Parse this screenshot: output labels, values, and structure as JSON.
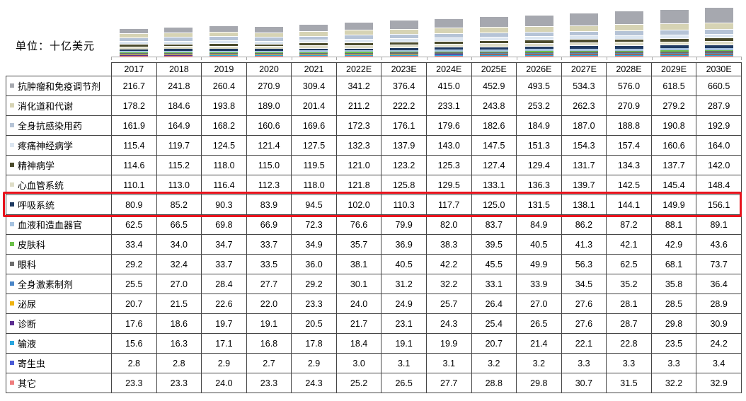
{
  "unit_label": "单位：十亿美元",
  "highlight": {
    "row_label": "呼吸系统",
    "color": "#e8131d"
  },
  "chart_data": {
    "type": "bar",
    "stacked": true,
    "title": "",
    "xlabel": "",
    "ylabel": "十亿美元",
    "legend_position": "table-row-labels",
    "axis_color": "#a6a6a6",
    "x": [
      "2017",
      "2018",
      "2019",
      "2020",
      "2021",
      "2022E",
      "2023E",
      "2024E",
      "2025E",
      "2026E",
      "2027E",
      "2028E",
      "2029E",
      "2030E"
    ],
    "series": [
      {
        "name": "抗肿瘤和免疫调节剂",
        "color": "#a6a8af",
        "values": [
          216.7,
          241.8,
          260.4,
          270.9,
          309.4,
          341.2,
          376.4,
          415.0,
          452.9,
          493.5,
          534.3,
          576.0,
          618.5,
          660.5
        ]
      },
      {
        "name": "消化道和代谢",
        "color": "#d6d3b4",
        "values": [
          178.2,
          184.6,
          193.8,
          189.0,
          201.4,
          211.2,
          222.2,
          233.1,
          243.8,
          253.2,
          262.3,
          270.9,
          279.2,
          287.9
        ]
      },
      {
        "name": "全身抗感染用药",
        "color": "#b5c3d6",
        "values": [
          161.9,
          164.9,
          168.2,
          160.6,
          169.6,
          172.3,
          176.1,
          179.6,
          182.6,
          184.9,
          187.0,
          188.8,
          190.8,
          192.9
        ]
      },
      {
        "name": "疼痛神经病学",
        "color": "#dce6f1",
        "values": [
          115.4,
          119.7,
          124.5,
          121.4,
          127.5,
          132.3,
          137.9,
          143.0,
          147.5,
          151.3,
          154.3,
          157.4,
          160.6,
          164.0
        ]
      },
      {
        "name": "精神病学",
        "color": "#4b4b2c",
        "values": [
          114.6,
          115.2,
          118.0,
          115.0,
          119.5,
          121.0,
          123.2,
          125.3,
          127.4,
          129.4,
          131.7,
          134.3,
          137.7,
          142.0
        ]
      },
      {
        "name": "心血管系统",
        "color": "#deddc7",
        "values": [
          110.1,
          113.0,
          116.4,
          112.3,
          118.0,
          121.8,
          125.8,
          129.5,
          133.1,
          136.3,
          139.7,
          142.5,
          145.4,
          148.4
        ]
      },
      {
        "name": "呼吸系统",
        "color": "#1f3a62",
        "values": [
          80.9,
          85.2,
          90.3,
          83.9,
          94.5,
          102.0,
          110.3,
          117.7,
          125.0,
          131.5,
          138.1,
          144.1,
          149.9,
          156.1
        ]
      },
      {
        "name": "血液和造血器官",
        "color": "#a5c2e0",
        "values": [
          62.5,
          66.5,
          69.8,
          66.9,
          72.3,
          76.6,
          79.9,
          82.0,
          83.7,
          84.9,
          86.2,
          87.2,
          88.1,
          89.1
        ]
      },
      {
        "name": "皮肤科",
        "color": "#6cc04a",
        "values": [
          33.4,
          34.0,
          34.7,
          33.7,
          34.9,
          35.7,
          36.9,
          38.3,
          39.5,
          40.5,
          41.3,
          42.1,
          42.9,
          43.6
        ]
      },
      {
        "name": "眼科",
        "color": "#6d6d6d",
        "values": [
          29.2,
          32.4,
          33.7,
          33.5,
          36.0,
          38.1,
          40.5,
          42.2,
          45.5,
          49.9,
          56.3,
          62.5,
          68.1,
          73.7
        ]
      },
      {
        "name": "全身激素制剂",
        "color": "#4a86c8",
        "values": [
          25.5,
          27.0,
          28.4,
          27.7,
          29.2,
          30.1,
          31.2,
          32.2,
          33.1,
          33.9,
          34.5,
          35.2,
          35.8,
          36.4
        ]
      },
      {
        "name": "泌尿",
        "color": "#efb310",
        "values": [
          20.7,
          21.5,
          22.6,
          22.0,
          23.3,
          24.0,
          24.9,
          25.7,
          26.4,
          27.0,
          27.6,
          28.1,
          28.5,
          28.9
        ]
      },
      {
        "name": "诊断",
        "color": "#5c2e91",
        "values": [
          17.6,
          18.6,
          19.7,
          19.1,
          20.5,
          21.7,
          23.1,
          24.3,
          25.4,
          26.5,
          27.6,
          28.7,
          29.8,
          30.9
        ]
      },
      {
        "name": "输液",
        "color": "#2ba6de",
        "values": [
          15.6,
          16.3,
          17.1,
          16.8,
          17.8,
          18.4,
          19.1,
          19.9,
          20.7,
          21.4,
          22.1,
          22.8,
          23.5,
          24.2
        ]
      },
      {
        "name": "寄生虫",
        "color": "#4a5bd6",
        "values": [
          2.8,
          2.8,
          2.9,
          2.7,
          2.9,
          3.0,
          3.1,
          3.1,
          3.2,
          3.2,
          3.3,
          3.3,
          3.3,
          3.4
        ]
      },
      {
        "name": "其它",
        "color": "#ef7d7d",
        "values": [
          23.3,
          23.3,
          24.0,
          23.3,
          24.3,
          25.2,
          26.5,
          27.7,
          28.8,
          29.8,
          30.7,
          31.5,
          32.2,
          32.9
        ]
      }
    ]
  }
}
